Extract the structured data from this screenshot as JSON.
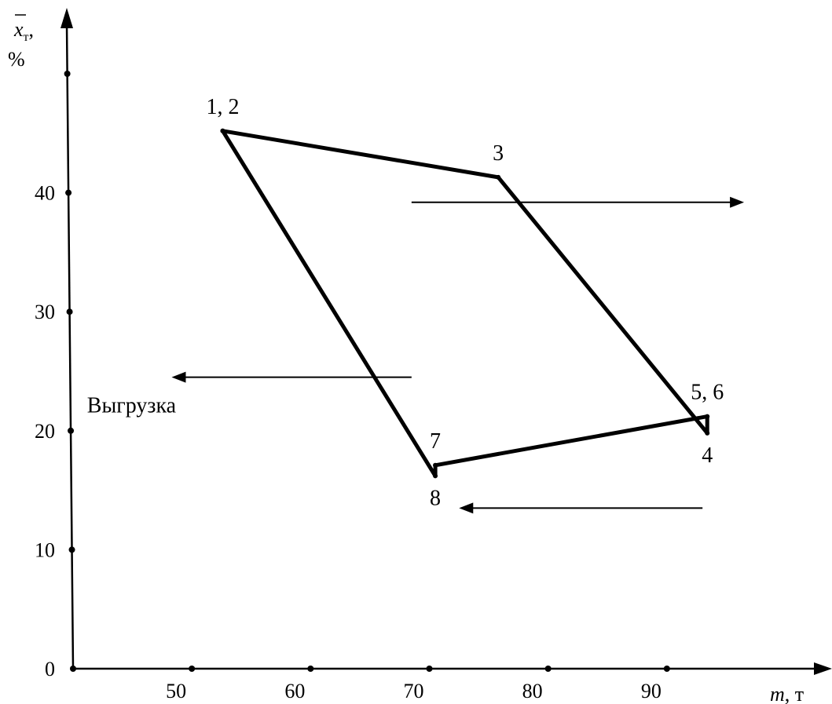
{
  "chart_data": {
    "type": "line",
    "xlabel": {
      "main": "m",
      "unit": ", т"
    },
    "ylabel": {
      "main": "x",
      "sub": "т",
      "tail": ",",
      "unit": "%"
    },
    "xlim": [
      40,
      100
    ],
    "ylim": [
      0,
      50
    ],
    "x_ticks": [
      50,
      60,
      70,
      80,
      90
    ],
    "x_tick_labels": [
      "50",
      "60",
      "70",
      "80",
      "90"
    ],
    "y_ticks": [
      0,
      10,
      20,
      30,
      40,
      50
    ],
    "y_tick_labels": [
      "0",
      "10",
      "20",
      "30",
      "40",
      ""
    ],
    "grid": false,
    "series": [
      {
        "points": [
          {
            "x": 52.6,
            "y": 45.2
          },
          {
            "x": 75.8,
            "y": 41.3
          },
          {
            "x": 93.4,
            "y": 19.8
          },
          {
            "x": 93.4,
            "y": 21.2
          },
          {
            "x": 70.5,
            "y": 17.1
          },
          {
            "x": 70.5,
            "y": 16.2
          },
          {
            "x": 52.6,
            "y": 45.2
          }
        ]
      }
    ],
    "point_labels": [
      {
        "text": "1, 2",
        "x": 52.6,
        "y": 45.2,
        "pos": "above"
      },
      {
        "text": "3",
        "x": 75.8,
        "y": 41.3,
        "pos": "above"
      },
      {
        "text": "4",
        "x": 93.4,
        "y": 19.8,
        "pos": "below"
      },
      {
        "text": "5, 6",
        "x": 93.4,
        "y": 21.2,
        "pos": "above"
      },
      {
        "text": "7",
        "x": 70.5,
        "y": 17.1,
        "pos": "above"
      },
      {
        "text": "8",
        "x": 70.5,
        "y": 16.2,
        "pos": "below"
      }
    ],
    "annotations": [
      {
        "type": "arrow",
        "from": [
          68.5,
          39.2
        ],
        "to": [
          96.5,
          39.2
        ]
      },
      {
        "type": "arrow",
        "from": [
          68.5,
          24.5
        ],
        "to": [
          48.3,
          24.5
        ]
      },
      {
        "type": "arrow",
        "from": [
          93.0,
          13.5
        ],
        "to": [
          72.5,
          13.5
        ]
      },
      {
        "type": "text",
        "text": "Выгрузка",
        "x": 42.5,
        "y": 22.0
      }
    ]
  }
}
